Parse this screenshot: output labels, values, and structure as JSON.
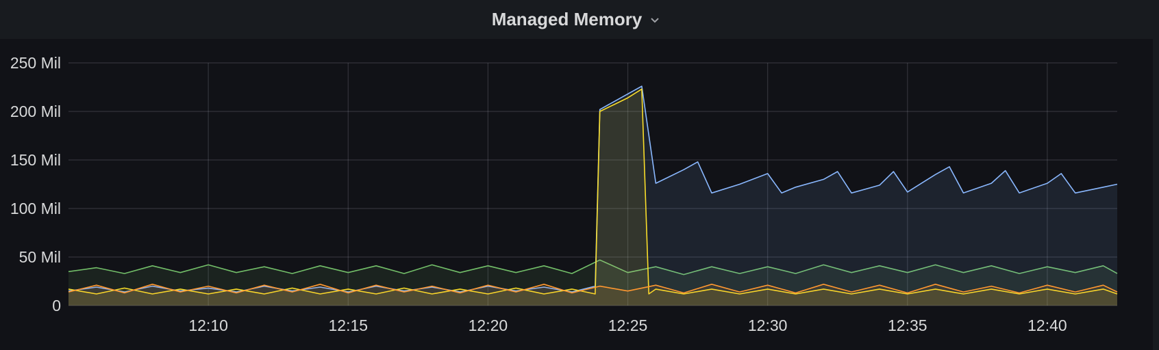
{
  "panel": {
    "title": "Managed Memory"
  },
  "chart_data": {
    "type": "area",
    "title": "Managed Memory",
    "xlabel": "",
    "ylabel": "",
    "y_unit": "Mil",
    "ylim": [
      0,
      250
    ],
    "y_ticks": [
      {
        "value": 0,
        "label": "0"
      },
      {
        "value": 50,
        "label": "50 Mil"
      },
      {
        "value": 100,
        "label": "100 Mil"
      },
      {
        "value": 150,
        "label": "150 Mil"
      },
      {
        "value": 200,
        "label": "200 Mil"
      },
      {
        "value": 250,
        "label": "250 Mil"
      }
    ],
    "xlim": [
      "12:05",
      "12:42:30"
    ],
    "x_ticks": [
      "12:10",
      "12:15",
      "12:20",
      "12:25",
      "12:30",
      "12:35",
      "12:40"
    ],
    "grid": true,
    "legend": "none",
    "series": [
      {
        "color": "#73bf69",
        "points": [
          [
            "12:05",
            35
          ],
          [
            "12:06",
            39
          ],
          [
            "12:07",
            33
          ],
          [
            "12:08",
            41
          ],
          [
            "12:09",
            34
          ],
          [
            "12:10",
            42
          ],
          [
            "12:11",
            34
          ],
          [
            "12:12",
            40
          ],
          [
            "12:13",
            33
          ],
          [
            "12:14",
            41
          ],
          [
            "12:15",
            34
          ],
          [
            "12:16",
            41
          ],
          [
            "12:17",
            33
          ],
          [
            "12:18",
            42
          ],
          [
            "12:19",
            34
          ],
          [
            "12:20",
            41
          ],
          [
            "12:21",
            34
          ],
          [
            "12:22",
            41
          ],
          [
            "12:23",
            33
          ],
          [
            "12:24",
            47
          ],
          [
            "12:25",
            34
          ],
          [
            "12:26",
            40
          ],
          [
            "12:27",
            32
          ],
          [
            "12:28",
            40
          ],
          [
            "12:29",
            33
          ],
          [
            "12:30",
            40
          ],
          [
            "12:31",
            33
          ],
          [
            "12:32",
            42
          ],
          [
            "12:33",
            34
          ],
          [
            "12:34",
            41
          ],
          [
            "12:35",
            34
          ],
          [
            "12:36",
            42
          ],
          [
            "12:37",
            34
          ],
          [
            "12:38",
            41
          ],
          [
            "12:39",
            33
          ],
          [
            "12:40",
            40
          ],
          [
            "12:41",
            34
          ],
          [
            "12:42",
            41
          ],
          [
            "12:42:30",
            33
          ]
        ]
      },
      {
        "color": "#8ab8ff",
        "points": [
          [
            "12:05",
            15
          ],
          [
            "12:06",
            19
          ],
          [
            "12:07",
            14
          ],
          [
            "12:08",
            20
          ],
          [
            "12:09",
            15
          ],
          [
            "12:10",
            18
          ],
          [
            "12:11",
            14
          ],
          [
            "12:12",
            20
          ],
          [
            "12:13",
            15
          ],
          [
            "12:14",
            19
          ],
          [
            "12:15",
            14
          ],
          [
            "12:16",
            20
          ],
          [
            "12:17",
            15
          ],
          [
            "12:18",
            19
          ],
          [
            "12:19",
            14
          ],
          [
            "12:20",
            20
          ],
          [
            "12:21",
            15
          ],
          [
            "12:22",
            19
          ],
          [
            "12:23",
            14
          ],
          [
            "12:23:50",
            20
          ],
          [
            "12:24",
            202
          ],
          [
            "12:24:30",
            210
          ],
          [
            "12:25",
            218
          ],
          [
            "12:25:30",
            226
          ],
          [
            "12:26",
            126
          ],
          [
            "12:27",
            140
          ],
          [
            "12:27:30",
            148
          ],
          [
            "12:28",
            116
          ],
          [
            "12:29",
            125
          ],
          [
            "12:30",
            136
          ],
          [
            "12:30:30",
            116
          ],
          [
            "12:31",
            122
          ],
          [
            "12:32",
            130
          ],
          [
            "12:32:30",
            138
          ],
          [
            "12:33",
            116
          ],
          [
            "12:34",
            124
          ],
          [
            "12:34:30",
            138
          ],
          [
            "12:35",
            117
          ],
          [
            "12:35:30",
            126
          ],
          [
            "12:36",
            135
          ],
          [
            "12:36:30",
            143
          ],
          [
            "12:37",
            116
          ],
          [
            "12:38",
            126
          ],
          [
            "12:38:30",
            139
          ],
          [
            "12:39",
            116
          ],
          [
            "12:40",
            126
          ],
          [
            "12:40:30",
            136
          ],
          [
            "12:41",
            116
          ],
          [
            "12:42",
            122
          ],
          [
            "12:42:30",
            125
          ]
        ]
      },
      {
        "color": "#fade2a",
        "points": [
          [
            "12:05",
            17
          ],
          [
            "12:06",
            12
          ],
          [
            "12:07",
            18
          ],
          [
            "12:08",
            12
          ],
          [
            "12:09",
            17
          ],
          [
            "12:10",
            12
          ],
          [
            "12:11",
            17
          ],
          [
            "12:12",
            12
          ],
          [
            "12:13",
            18
          ],
          [
            "12:14",
            12
          ],
          [
            "12:15",
            17
          ],
          [
            "12:16",
            12
          ],
          [
            "12:17",
            18
          ],
          [
            "12:18",
            12
          ],
          [
            "12:19",
            17
          ],
          [
            "12:20",
            12
          ],
          [
            "12:21",
            18
          ],
          [
            "12:22",
            12
          ],
          [
            "12:23",
            17
          ],
          [
            "12:23:50",
            12
          ],
          [
            "12:24",
            200
          ],
          [
            "12:24:30",
            207
          ],
          [
            "12:25",
            214
          ],
          [
            "12:25:30",
            223
          ],
          [
            "12:25:45",
            12
          ],
          [
            "12:26",
            17
          ],
          [
            "12:27",
            12
          ],
          [
            "12:28",
            17
          ],
          [
            "12:29",
            12
          ],
          [
            "12:30",
            17
          ],
          [
            "12:31",
            12
          ],
          [
            "12:32",
            17
          ],
          [
            "12:33",
            12
          ],
          [
            "12:34",
            17
          ],
          [
            "12:35",
            12
          ],
          [
            "12:36",
            17
          ],
          [
            "12:37",
            12
          ],
          [
            "12:38",
            17
          ],
          [
            "12:39",
            12
          ],
          [
            "12:40",
            17
          ],
          [
            "12:41",
            12
          ],
          [
            "12:42",
            17
          ],
          [
            "12:42:30",
            12
          ]
        ]
      },
      {
        "color": "#ff9830",
        "points": [
          [
            "12:05",
            14
          ],
          [
            "12:06",
            21
          ],
          [
            "12:07",
            13
          ],
          [
            "12:08",
            22
          ],
          [
            "12:09",
            14
          ],
          [
            "12:10",
            20
          ],
          [
            "12:11",
            13
          ],
          [
            "12:12",
            21
          ],
          [
            "12:13",
            14
          ],
          [
            "12:14",
            22
          ],
          [
            "12:15",
            13
          ],
          [
            "12:16",
            21
          ],
          [
            "12:17",
            14
          ],
          [
            "12:18",
            20
          ],
          [
            "12:19",
            13
          ],
          [
            "12:20",
            21
          ],
          [
            "12:21",
            14
          ],
          [
            "12:22",
            22
          ],
          [
            "12:23",
            13
          ],
          [
            "12:24",
            20
          ],
          [
            "12:25",
            15
          ],
          [
            "12:26",
            21
          ],
          [
            "12:27",
            13
          ],
          [
            "12:28",
            22
          ],
          [
            "12:29",
            14
          ],
          [
            "12:30",
            21
          ],
          [
            "12:31",
            13
          ],
          [
            "12:32",
            22
          ],
          [
            "12:33",
            14
          ],
          [
            "12:34",
            21
          ],
          [
            "12:35",
            13
          ],
          [
            "12:36",
            22
          ],
          [
            "12:37",
            14
          ],
          [
            "12:38",
            20
          ],
          [
            "12:39",
            13
          ],
          [
            "12:40",
            21
          ],
          [
            "12:41",
            14
          ],
          [
            "12:42",
            21
          ],
          [
            "12:42:30",
            14
          ]
        ]
      }
    ]
  }
}
